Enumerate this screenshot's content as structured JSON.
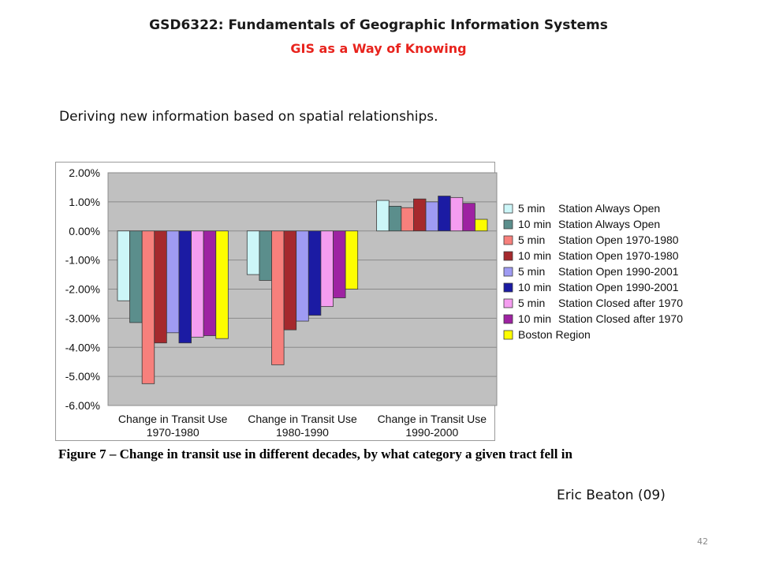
{
  "slide": {
    "title": "GSD6322: Fundamentals of Geographic Information Systems",
    "subtitle": "GIS as a Way of Knowing",
    "intro": "Deriving new information based on spatial relationships.",
    "caption": "Figure 7 – Change in transit use in different decades, by what category a given tract fell in",
    "credit": "Eric Beaton (09)",
    "page_number": "42"
  },
  "colors": {
    "title": "#1a1a1a",
    "subtitle": "#e8231d",
    "plot_background": "#c0c0c0"
  },
  "chart_data": {
    "type": "bar",
    "categories": [
      [
        "Change in Transit Use",
        "1970-1980"
      ],
      [
        "Change in Transit Use",
        "1980-1990"
      ],
      [
        "Change in Transit Use",
        "1990-2000"
      ]
    ],
    "ylim": [
      -6.0,
      2.0
    ],
    "yticks": [
      2.0,
      1.0,
      0.0,
      -1.0,
      -2.0,
      -3.0,
      -4.0,
      -5.0,
      -6.0
    ],
    "ytick_labels": [
      "2.00%",
      "1.00%",
      "0.00%",
      "-1.00%",
      "-2.00%",
      "-3.00%",
      "-4.00%",
      "-5.00%",
      "-6.00%"
    ],
    "grid": true,
    "legend_position": "right",
    "series": [
      {
        "name_a": "5 min",
        "name_b": "Station Always Open",
        "color": "#ccf6f8",
        "values": [
          -2.4,
          -1.5,
          1.05
        ]
      },
      {
        "name_a": "10 min",
        "name_b": "Station Always Open",
        "color": "#5b8e8c",
        "values": [
          -3.15,
          -1.7,
          0.85
        ]
      },
      {
        "name_a": "5 min",
        "name_b": "Station Open 1970-1980",
        "color": "#f7807c",
        "values": [
          -5.25,
          -4.6,
          0.8
        ]
      },
      {
        "name_a": "10 min",
        "name_b": "Station Open 1970-1980",
        "color": "#a5292d",
        "values": [
          -3.85,
          -3.4,
          1.1
        ]
      },
      {
        "name_a": "5 min",
        "name_b": "Station Open 1990-2001",
        "color": "#9f9bf3",
        "values": [
          -3.5,
          -3.1,
          1.0
        ]
      },
      {
        "name_a": "10 min",
        "name_b": "Station Open 1990-2001",
        "color": "#1b1ba3",
        "values": [
          -3.85,
          -2.9,
          1.2
        ]
      },
      {
        "name_a": "5 min",
        "name_b": "Station Closed after 1970",
        "color": "#f59df0",
        "values": [
          -3.65,
          -2.6,
          1.15
        ]
      },
      {
        "name_a": "10 min",
        "name_b": "Station Closed after 1970",
        "color": "#9e22a2",
        "values": [
          -3.6,
          -2.3,
          0.95
        ]
      },
      {
        "name_a": "Boston Region",
        "name_b": "",
        "color": "#fdfd00",
        "values": [
          -3.7,
          -2.0,
          0.4
        ]
      }
    ]
  }
}
